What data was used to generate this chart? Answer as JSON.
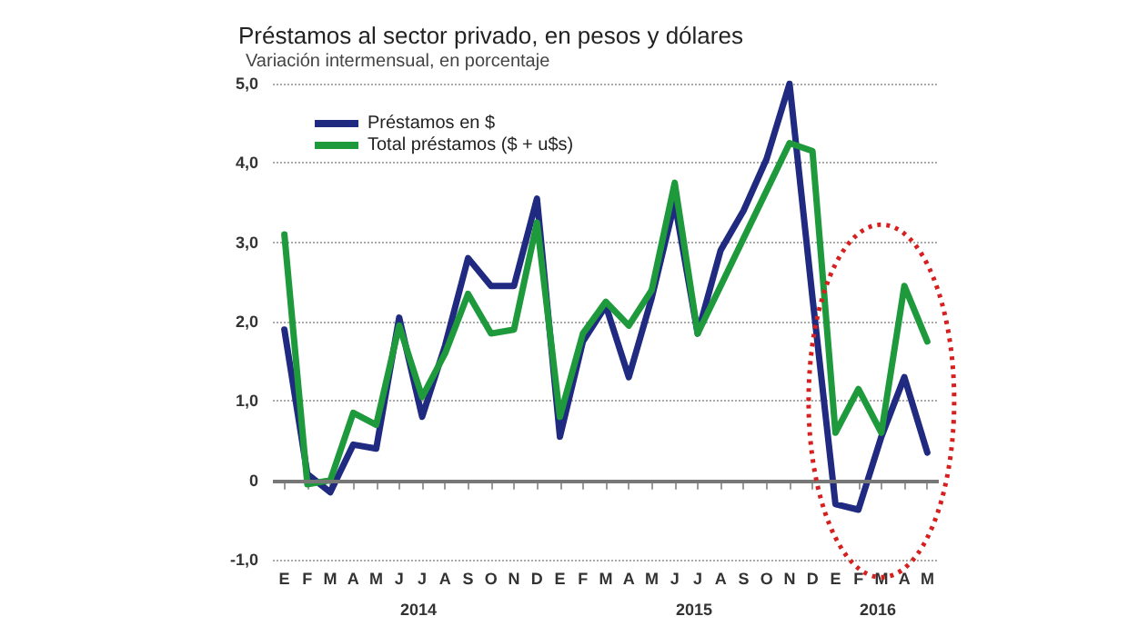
{
  "chart_data": {
    "type": "line",
    "title": "Préstamos al sector privado, en pesos y dólares",
    "subtitle": "Variación intermensual, en porcentaje",
    "categories": [
      "E",
      "F",
      "M",
      "A",
      "M",
      "J",
      "J",
      "A",
      "S",
      "O",
      "N",
      "D",
      "E",
      "F",
      "M",
      "A",
      "M",
      "J",
      "J",
      "A",
      "S",
      "O",
      "N",
      "D",
      "E",
      "F",
      "M",
      "A",
      "M"
    ],
    "series": [
      {
        "name": "Préstamos en $",
        "color": "#1f2a80",
        "values": [
          1.9,
          0.08,
          -0.15,
          0.45,
          0.4,
          2.05,
          0.8,
          1.7,
          2.8,
          2.45,
          2.45,
          3.55,
          0.55,
          1.75,
          2.2,
          1.3,
          2.3,
          3.5,
          1.85,
          2.9,
          3.4,
          4.05,
          5.0,
          2.3,
          -0.3,
          -0.37,
          0.55,
          1.3,
          0.35
        ]
      },
      {
        "name": "Total préstamos ($ + u$s)",
        "color": "#1e9a3c",
        "values": [
          3.1,
          -0.05,
          0.0,
          0.85,
          0.7,
          1.95,
          1.05,
          1.6,
          2.35,
          1.85,
          1.9,
          3.25,
          0.8,
          1.85,
          2.25,
          1.95,
          2.4,
          3.75,
          1.85,
          2.45,
          3.05,
          3.65,
          4.25,
          4.15,
          0.6,
          1.15,
          0.6,
          2.45,
          1.75
        ]
      }
    ],
    "ylim": [
      -1,
      5
    ],
    "yticks": [
      {
        "value": -1,
        "label": "-1,0"
      },
      0,
      {
        "value": 1,
        "label": "1,0"
      },
      {
        "value": 2,
        "label": "2,0"
      },
      {
        "value": 3,
        "label": "3,0"
      },
      {
        "value": 4,
        "label": "4,0"
      },
      {
        "value": 5,
        "label": "5,0"
      }
    ],
    "grid": "y",
    "legend": "top left",
    "marker": "none",
    "line_style": "solid",
    "ref_lines": [
      {
        "axis": "y",
        "value": 0,
        "color": "#777777"
      }
    ],
    "annotations": [
      "2014",
      "2015",
      "2016"
    ]
  }
}
